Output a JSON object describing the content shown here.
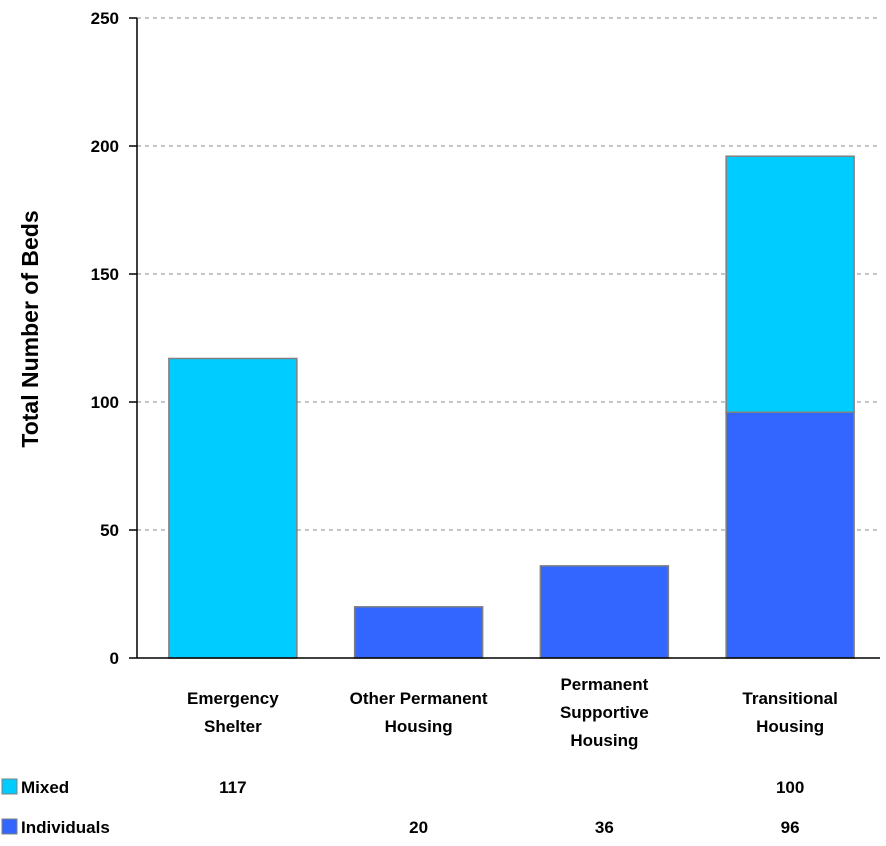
{
  "chart_data": {
    "type": "bar",
    "stacked": true,
    "ylabel": "Total Number of Beds",
    "xlabel": "",
    "ylim": [
      0,
      250
    ],
    "yticks": [
      "0",
      "50",
      "100",
      "150",
      "200",
      "250"
    ],
    "grid": true,
    "categories": [
      [
        "Emergency",
        "Shelter"
      ],
      [
        "Other Permanent",
        "Housing"
      ],
      [
        "Permanent",
        "Supportive",
        "Housing"
      ],
      [
        "Transitional",
        "Housing"
      ]
    ],
    "series": [
      {
        "name": "Individuals",
        "color": "#3366ff",
        "values": [
          null,
          20,
          36,
          96
        ]
      },
      {
        "name": "Mixed",
        "color": "#00ccff",
        "values": [
          117,
          null,
          null,
          100
        ]
      }
    ],
    "data_table": {
      "rows": [
        {
          "name": "Mixed",
          "color": "#00ccff",
          "cells": [
            "117",
            "",
            "",
            "100"
          ]
        },
        {
          "name": "Individuals",
          "color": "#3366ff",
          "cells": [
            "",
            "20",
            "36",
            "96"
          ]
        }
      ]
    }
  }
}
